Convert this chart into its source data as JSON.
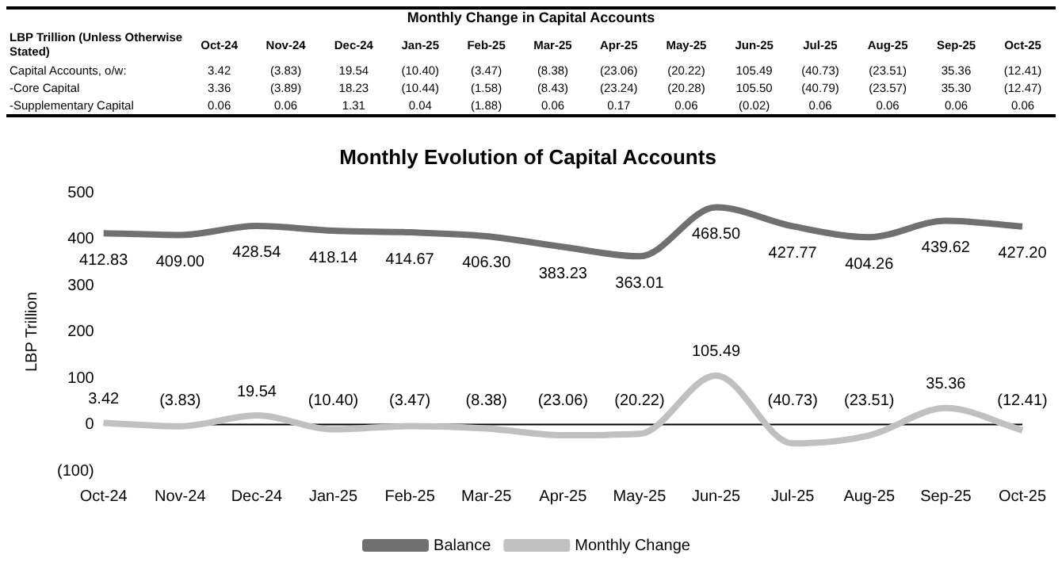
{
  "chart_data": [
    {
      "type": "heatmap",
      "title": "Monthly Change in Capital Accounts",
      "ylabel": "LBP Trillion (Unless Otherwise Stated)",
      "categories": [
        "Oct-24",
        "Nov-24",
        "Dec-24",
        "Jan-25",
        "Feb-25",
        "Mar-25",
        "Apr-25",
        "May-25",
        "Jun-25",
        "Jul-25",
        "Aug-25",
        "Sep-25",
        "Oct-25"
      ],
      "y_categories": [
        "Capital Accounts, o/w:",
        "-Core Capital",
        "-Supplementary Capital"
      ],
      "cells": [
        [
          3.42,
          -3.83,
          19.54,
          -10.4,
          -3.47,
          -8.38,
          -23.06,
          -20.22,
          105.49,
          -40.73,
          -23.51,
          35.36,
          -12.41
        ],
        [
          3.36,
          -3.89,
          18.23,
          -10.44,
          -1.58,
          -8.43,
          -23.24,
          -20.28,
          105.5,
          -40.79,
          -23.57,
          35.3,
          -12.47
        ],
        [
          0.06,
          0.06,
          1.31,
          0.04,
          -1.88,
          0.06,
          0.17,
          0.06,
          -0.02,
          0.06,
          0.06,
          0.06,
          0.06
        ]
      ],
      "cell_labels": [
        [
          "3.42",
          "(3.83)",
          "19.54",
          "(10.40)",
          "(3.47)",
          "(8.38)",
          "(23.06)",
          "(20.22)",
          "105.49",
          "(40.73)",
          "(23.51)",
          "35.36",
          "(12.41)"
        ],
        [
          "3.36",
          "(3.89)",
          "18.23",
          "(10.44)",
          "(1.58)",
          "(8.43)",
          "(23.24)",
          "(20.28)",
          "105.50",
          "(40.79)",
          "(23.57)",
          "35.30",
          "(12.47)"
        ],
        [
          "0.06",
          "0.06",
          "1.31",
          "0.04",
          "(1.88)",
          "0.06",
          "0.17",
          "0.06",
          "(0.02)",
          "0.06",
          "0.06",
          "0.06",
          "0.06"
        ]
      ]
    },
    {
      "type": "line",
      "title": "Monthly Evolution of Capital Accounts",
      "ylabel": "LBP Trillion",
      "categories": [
        "Oct-24",
        "Nov-24",
        "Dec-24",
        "Jan-25",
        "Feb-25",
        "Mar-25",
        "Apr-25",
        "May-25",
        "Jun-25",
        "Jul-25",
        "Aug-25",
        "Sep-25",
        "Oct-25"
      ],
      "series": [
        {
          "name": "Balance",
          "color": "#707070",
          "values": [
            412.83,
            409.0,
            428.54,
            418.14,
            414.67,
            406.3,
            383.23,
            363.01,
            468.5,
            427.77,
            404.26,
            439.62,
            427.2
          ],
          "value_labels": [
            "412.83",
            "409.00",
            "428.54",
            "418.14",
            "414.67",
            "406.30",
            "383.23",
            "363.01",
            "468.50",
            "427.77",
            "404.26",
            "439.62",
            "427.20"
          ]
        },
        {
          "name": "Monthly Change",
          "color": "#c0c0c0",
          "values": [
            3.42,
            -3.83,
            19.54,
            -10.4,
            -3.47,
            -8.38,
            -23.06,
            -20.22,
            105.49,
            -40.73,
            -23.51,
            35.36,
            -12.41
          ],
          "value_labels": [
            "3.42",
            "(3.83)",
            "19.54",
            "(10.40)",
            "(3.47)",
            "(8.38)",
            "(23.06)",
            "(20.22)",
            "105.49",
            "(40.73)",
            "(23.51)",
            "35.36",
            "(12.41)"
          ]
        }
      ],
      "ylim": [
        -100,
        500
      ],
      "yticks": [
        {
          "value": -100,
          "label": "(100)"
        },
        0,
        100,
        200,
        300,
        400,
        500
      ],
      "ref_lines": [
        {
          "axis": "y",
          "value": 0,
          "color": "#000000"
        }
      ],
      "grid": false,
      "legend": "bottom",
      "marker": "none",
      "line_style": "solid"
    }
  ]
}
